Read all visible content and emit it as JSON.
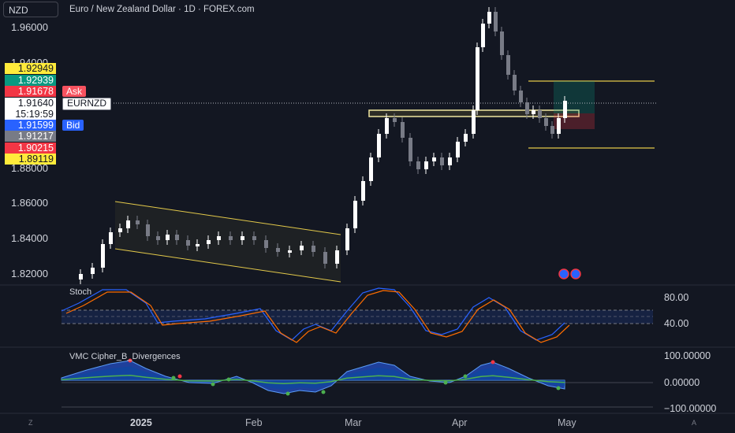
{
  "symbol_button": "NZD",
  "title": "Euro / New Zealand Dollar · 1D · FOREX.com",
  "y_ticks": [
    "1.96000",
    "1.94000",
    "1.88000",
    "1.86000",
    "1.84000",
    "1.82000"
  ],
  "price_labels": [
    {
      "value": "1.92949",
      "bg": "#ffeb3b",
      "fg": "#131722"
    },
    {
      "value": "1.92939",
      "bg": "#089981",
      "fg": "#ffffff"
    },
    {
      "value": "1.91678",
      "bg": "#f23645",
      "fg": "#ffffff",
      "tag": "Ask",
      "tag_bg": "#f7525f"
    },
    {
      "value": "1.91640",
      "bg": "#ffffff",
      "fg": "#131722",
      "tag": "EURNZD",
      "tag_bg": "#ffffff"
    },
    {
      "value": "15:19:59",
      "bg": "#ffffff",
      "fg": "#131722"
    },
    {
      "value": "1.91599",
      "bg": "#2962ff",
      "fg": "#ffffff",
      "tag": "Bid",
      "tag_bg": "#2962ff"
    },
    {
      "value": "1.91217",
      "bg": "#787b86",
      "fg": "#ffffff"
    },
    {
      "value": "1.90215",
      "bg": "#f23645",
      "fg": "#ffffff"
    },
    {
      "value": "1.89119",
      "bg": "#ffeb3b",
      "fg": "#131722"
    }
  ],
  "stoch": {
    "label": "Stoch",
    "ticks": [
      "80.00",
      "40.00"
    ]
  },
  "vmc": {
    "label": "VMC Cipher_B_Divergences",
    "ticks": [
      "100.00000",
      "0.00000",
      "−100.00000"
    ]
  },
  "x_labels": [
    "2025",
    "Feb",
    "Mar",
    "Apr",
    "May"
  ],
  "corner_left": "Z",
  "corner_right": "A",
  "colors": {
    "background": "#131722",
    "up": "#ffffff",
    "down": "#787b86",
    "channel": "#e3c94a",
    "zone": "#e3c94a"
  }
}
